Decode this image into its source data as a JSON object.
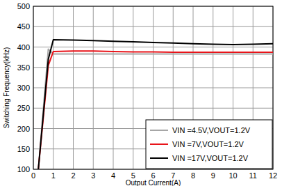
{
  "chart_data": {
    "type": "line",
    "x_label": "Output Current(A)",
    "y_label": "Switching Frequency(kHz)",
    "x": [
      0.25,
      0.75,
      1,
      2,
      3,
      4,
      5,
      6,
      7,
      8,
      9,
      10,
      11,
      12
    ],
    "series": [
      {
        "name": "VIN =4.5V,VOUT=1.2V",
        "color": "#a6a6a6",
        "values": [
          100,
          395,
          383,
          383,
          383,
          383,
          383,
          383,
          383,
          383,
          383,
          383,
          383,
          383
        ]
      },
      {
        "name": "VIN =7V,VOUT=1.2V",
        "color": "#e8141a",
        "values": [
          100,
          355,
          389,
          390,
          390,
          389,
          388,
          388,
          387,
          387,
          387,
          387,
          387,
          387
        ]
      },
      {
        "name": "VIN =17V,VOUT=1.2V",
        "color": "#000000",
        "values": [
          100,
          370,
          418,
          417,
          416,
          414,
          413,
          411,
          410,
          408,
          407,
          406,
          407,
          408
        ]
      }
    ],
    "xlim": [
      0,
      12
    ],
    "xticks": [
      0,
      1,
      2,
      3,
      4,
      5,
      6,
      7,
      8,
      9,
      10,
      11,
      12
    ],
    "ylim": [
      100,
      500
    ],
    "yticks": [
      100,
      150,
      200,
      250,
      300,
      350,
      400,
      450,
      500
    ],
    "grid": true,
    "legend": "lower right"
  }
}
